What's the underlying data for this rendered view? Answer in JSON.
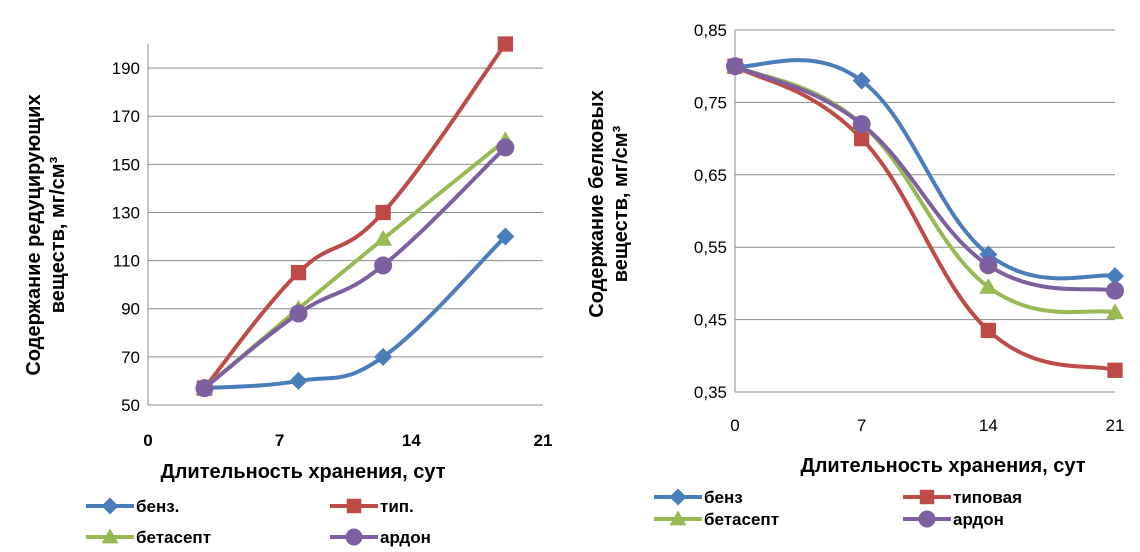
{
  "chart_data": [
    {
      "type": "line",
      "title": "",
      "xlabel": "Длительность хранения, сут",
      "ylabel_lines": [
        "Содержание редуцирующих",
        "веществ, мг/см³"
      ],
      "x_ticks": [
        "0",
        "7",
        "14",
        "21"
      ],
      "y_ticks": [
        "50",
        "70",
        "90",
        "110",
        "130",
        "150",
        "170",
        "190"
      ],
      "xlim": [
        0,
        21
      ],
      "ylim": [
        50,
        200
      ],
      "grid": true,
      "smooth": true,
      "legend_position": "bottom",
      "series": [
        {
          "name": "бенз.",
          "color": "#4a7ebb",
          "marker": "diamond",
          "x": [
            3,
            8,
            12.5,
            19
          ],
          "values": [
            57,
            60,
            70,
            120
          ]
        },
        {
          "name": "тип.",
          "color": "#be4b48",
          "marker": "square",
          "x": [
            3,
            8,
            12.5,
            19
          ],
          "values": [
            57,
            105,
            130,
            200
          ]
        },
        {
          "name": "бетасепт",
          "color": "#98b954",
          "marker": "triangle",
          "x": [
            3,
            8,
            12.5,
            19
          ],
          "values": [
            57,
            90,
            119,
            160
          ]
        },
        {
          "name": "ардон",
          "color": "#7d60a0",
          "marker": "circle",
          "x": [
            3,
            8,
            12.5,
            19
          ],
          "values": [
            57,
            88,
            108,
            157
          ]
        }
      ]
    },
    {
      "type": "line",
      "title": "",
      "xlabel": "Длительность хранения, сут",
      "ylabel_lines": [
        "Содержание белковых",
        "веществ, мг/см³"
      ],
      "x_ticks": [
        "0",
        "7",
        "14",
        "21"
      ],
      "y_ticks": [
        "0,35",
        "0,45",
        "0,55",
        "0,65",
        "0,75",
        "0,85"
      ],
      "xlim": [
        0,
        21
      ],
      "ylim": [
        0.35,
        0.85
      ],
      "grid": true,
      "smooth": true,
      "legend_position": "bottom",
      "series": [
        {
          "name": "бенз",
          "color": "#4a7ebb",
          "marker": "diamond",
          "x": [
            0,
            7,
            14,
            21
          ],
          "values": [
            0.8,
            0.78,
            0.54,
            0.51
          ]
        },
        {
          "name": "типовая",
          "color": "#be4b48",
          "marker": "square",
          "x": [
            0,
            7,
            14,
            21
          ],
          "values": [
            0.8,
            0.7,
            0.435,
            0.38
          ]
        },
        {
          "name": "бетасепт",
          "color": "#98b954",
          "marker": "triangle",
          "x": [
            0,
            7,
            14,
            21
          ],
          "values": [
            0.8,
            0.72,
            0.495,
            0.46
          ]
        },
        {
          "name": "ардон",
          "color": "#7d60a0",
          "marker": "circle",
          "x": [
            0,
            7,
            14,
            21
          ],
          "values": [
            0.8,
            0.72,
            0.525,
            0.49
          ]
        }
      ]
    }
  ]
}
